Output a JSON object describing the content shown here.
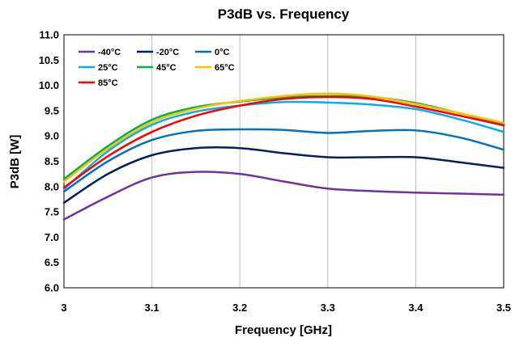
{
  "chart_data": {
    "type": "line",
    "title": "P3dB vs. Frequency",
    "xlabel": "Frequency [GHz]",
    "ylabel": "P3dB [W]",
    "xlim": [
      3.0,
      3.5
    ],
    "ylim": [
      6.0,
      11.0
    ],
    "x_ticks": [
      "3",
      "3.1",
      "3.2",
      "3.3",
      "3.4",
      "3.5"
    ],
    "y_ticks": [
      "6.0",
      "6.5",
      "7.0",
      "7.5",
      "8.0",
      "8.5",
      "9.0",
      "9.5",
      "10.0",
      "10.5",
      "11.0"
    ],
    "grid": "vertical",
    "legend_position": "top-left inside",
    "x": [
      3.0,
      3.05,
      3.1,
      3.15,
      3.2,
      3.25,
      3.3,
      3.35,
      3.4,
      3.45,
      3.5
    ],
    "series": [
      {
        "name": "-40°C",
        "color": "#7030a0",
        "values": [
          7.35,
          7.8,
          8.18,
          8.29,
          8.25,
          8.1,
          7.96,
          7.91,
          7.88,
          7.86,
          7.84
        ]
      },
      {
        "name": "-20°C",
        "color": "#002060",
        "values": [
          7.68,
          8.25,
          8.62,
          8.76,
          8.76,
          8.66,
          8.58,
          8.58,
          8.58,
          8.48,
          8.37
        ]
      },
      {
        "name": "0°C",
        "color": "#0070c0",
        "values": [
          7.9,
          8.5,
          8.92,
          9.1,
          9.13,
          9.12,
          9.06,
          9.1,
          9.11,
          8.97,
          8.73
        ]
      },
      {
        "name": "25°C",
        "color": "#00b0f0",
        "values": [
          7.95,
          8.7,
          9.22,
          9.48,
          9.6,
          9.67,
          9.66,
          9.62,
          9.53,
          9.33,
          9.08
        ]
      },
      {
        "name": "45°C",
        "color": "#00b050",
        "values": [
          8.15,
          8.8,
          9.32,
          9.57,
          9.68,
          9.76,
          9.79,
          9.77,
          9.65,
          9.45,
          9.24
        ]
      },
      {
        "name": "65°C",
        "color": "#ffc000",
        "values": [
          8.1,
          8.75,
          9.27,
          9.54,
          9.69,
          9.79,
          9.84,
          9.78,
          9.63,
          9.45,
          9.26
        ]
      },
      {
        "name": "85°C",
        "color": "#ff0000",
        "values": [
          7.98,
          8.6,
          9.08,
          9.4,
          9.6,
          9.73,
          9.77,
          9.73,
          9.58,
          9.4,
          9.21
        ]
      }
    ]
  }
}
